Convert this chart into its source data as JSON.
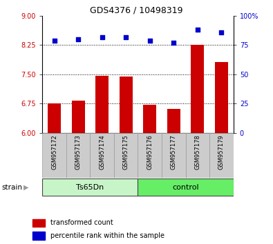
{
  "title": "GDS4376 / 10498319",
  "samples": [
    "GSM957172",
    "GSM957173",
    "GSM957174",
    "GSM957175",
    "GSM957176",
    "GSM957177",
    "GSM957178",
    "GSM957179"
  ],
  "bar_values": [
    6.76,
    6.82,
    7.46,
    7.44,
    6.73,
    6.62,
    8.26,
    7.82
  ],
  "dot_values": [
    79,
    80,
    82,
    82,
    79,
    77,
    88,
    86
  ],
  "groups": [
    {
      "label": "Ts65Dn",
      "start": 0,
      "end": 4,
      "color": "#c8f5c8"
    },
    {
      "label": "control",
      "start": 4,
      "end": 8,
      "color": "#66ee66"
    }
  ],
  "strain_label": "strain",
  "ylim_left": [
    6,
    9
  ],
  "ylim_right": [
    0,
    100
  ],
  "yticks_left": [
    6,
    6.75,
    7.5,
    8.25,
    9
  ],
  "yticks_right": [
    0,
    25,
    50,
    75,
    100
  ],
  "yticklabels_right": [
    "0",
    "25",
    "50",
    "75",
    "100%"
  ],
  "bar_color": "#cc0000",
  "dot_color": "#0000cc",
  "bar_width": 0.55,
  "grid_values": [
    6.75,
    7.5,
    8.25
  ],
  "legend_bar_label": "transformed count",
  "legend_dot_label": "percentile rank within the sample",
  "tick_area_color": "#cccccc"
}
